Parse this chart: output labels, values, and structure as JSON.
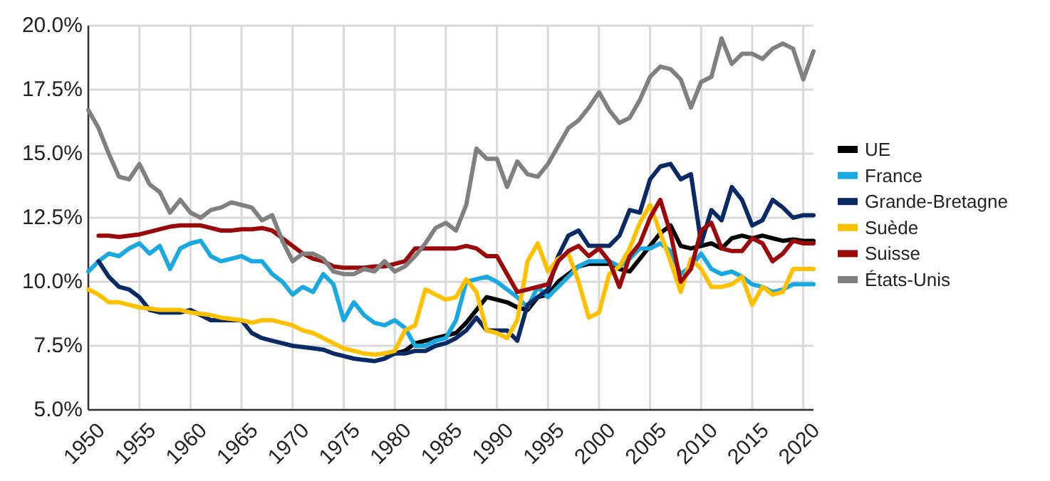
{
  "chart_data": {
    "type": "line",
    "xlim": [
      1950,
      2021
    ],
    "xticks": [
      1950,
      1955,
      1960,
      1965,
      1970,
      1975,
      1980,
      1985,
      1990,
      1995,
      2000,
      2005,
      2010,
      2015,
      2020
    ],
    "ylim": [
      5,
      20
    ],
    "yticks": [
      {
        "value": 5,
        "label": "5.0%"
      },
      {
        "value": 7.5,
        "label": "7.5%"
      },
      {
        "value": 10,
        "label": "10.0%"
      },
      {
        "value": 12.5,
        "label": "12.5%"
      },
      {
        "value": 15,
        "label": "15.0%"
      },
      {
        "value": 17.5,
        "label": "17.5%"
      },
      {
        "value": 20,
        "label": "20.0%"
      }
    ],
    "grid": true,
    "legend": "right",
    "line_style": "solid",
    "marker": "none",
    "series": [
      {
        "name": "UE",
        "color": "#000000",
        "x": [
          1979,
          1980,
          1981,
          1982,
          1983,
          1984,
          1985,
          1986,
          1987,
          1988,
          1989,
          1990,
          1991,
          1992,
          1993,
          1994,
          1995,
          1996,
          1997,
          1998,
          1999,
          2000,
          2001,
          2002,
          2003,
          2004,
          2005,
          2006,
          2007,
          2008,
          2009,
          2010,
          2011,
          2012,
          2013,
          2014,
          2015,
          2016,
          2017,
          2018,
          2019,
          2020,
          2021
        ],
        "values": [
          7.2,
          7.2,
          7.3,
          7.6,
          7.7,
          7.8,
          7.9,
          8.0,
          8.4,
          8.9,
          9.4,
          9.3,
          9.2,
          9.0,
          8.9,
          9.4,
          9.5,
          10.0,
          10.3,
          10.6,
          10.7,
          10.7,
          10.7,
          10.5,
          10.4,
          10.9,
          11.4,
          11.9,
          12.2,
          11.4,
          11.3,
          11.4,
          11.5,
          11.3,
          11.7,
          11.8,
          11.7,
          11.8,
          11.7,
          11.6,
          11.65,
          11.6,
          11.6
        ]
      },
      {
        "name": "France",
        "color": "#1aa8e0",
        "x": [
          1950,
          1951,
          1952,
          1953,
          1954,
          1955,
          1956,
          1957,
          1958,
          1959,
          1960,
          1961,
          1962,
          1963,
          1964,
          1965,
          1966,
          1967,
          1968,
          1969,
          1970,
          1971,
          1972,
          1973,
          1974,
          1975,
          1976,
          1977,
          1978,
          1979,
          1980,
          1981,
          1982,
          1983,
          1984,
          1985,
          1986,
          1987,
          1988,
          1989,
          1990,
          1991,
          1992,
          1993,
          1994,
          1995,
          1996,
          1997,
          1998,
          1999,
          2000,
          2001,
          2002,
          2003,
          2004,
          2005,
          2006,
          2007,
          2008,
          2009,
          2010,
          2011,
          2012,
          2013,
          2014,
          2015,
          2016,
          2017,
          2018,
          2019,
          2020,
          2021
        ],
        "values": [
          10.4,
          10.8,
          11.1,
          11.0,
          11.3,
          11.5,
          11.1,
          11.4,
          10.5,
          11.3,
          11.5,
          11.6,
          11.0,
          10.8,
          10.9,
          11.0,
          10.8,
          10.8,
          10.3,
          10.0,
          9.5,
          9.8,
          9.6,
          10.3,
          9.9,
          8.5,
          9.2,
          8.7,
          8.4,
          8.3,
          8.5,
          8.2,
          7.5,
          7.5,
          7.7,
          7.8,
          8.5,
          10.0,
          10.1,
          10.2,
          10.0,
          9.7,
          9.4,
          9.0,
          9.8,
          9.4,
          9.8,
          10.2,
          10.6,
          10.8,
          10.8,
          10.8,
          10.6,
          10.9,
          11.3,
          11.3,
          11.5,
          11.2,
          10.3,
          10.6,
          11.1,
          10.5,
          10.3,
          10.4,
          10.2,
          9.9,
          9.8,
          9.6,
          9.7,
          9.9,
          9.9,
          9.9
        ]
      },
      {
        "name": "Grande-Bretagne",
        "color": "#0a2a66",
        "x": [
          1951,
          1952,
          1953,
          1954,
          1955,
          1956,
          1957,
          1958,
          1959,
          1960,
          1961,
          1962,
          1963,
          1964,
          1965,
          1966,
          1967,
          1968,
          1969,
          1970,
          1971,
          1972,
          1973,
          1974,
          1975,
          1976,
          1977,
          1978,
          1979,
          1980,
          1981,
          1982,
          1983,
          1984,
          1985,
          1986,
          1987,
          1988,
          1989,
          1990,
          1991,
          1992,
          1993,
          1994,
          1995,
          1996,
          1997,
          1998,
          1999,
          2000,
          2001,
          2002,
          2003,
          2004,
          2005,
          2006,
          2007,
          2008,
          2009,
          2010,
          2011,
          2012,
          2013,
          2014,
          2015,
          2016,
          2017,
          2018,
          2019,
          2020,
          2021
        ],
        "values": [
          10.8,
          10.2,
          9.8,
          9.7,
          9.4,
          8.9,
          8.8,
          8.8,
          8.8,
          8.9,
          8.7,
          8.5,
          8.5,
          8.5,
          8.5,
          8.0,
          7.8,
          7.7,
          7.6,
          7.5,
          7.45,
          7.4,
          7.35,
          7.2,
          7.1,
          7.0,
          6.95,
          6.9,
          7.0,
          7.2,
          7.2,
          7.3,
          7.3,
          7.5,
          7.6,
          7.8,
          8.1,
          8.6,
          8.1,
          8.1,
          8.1,
          7.7,
          9.1,
          9.4,
          9.7,
          11.0,
          11.8,
          12.0,
          11.4,
          11.4,
          11.4,
          11.8,
          12.8,
          12.7,
          14.0,
          14.5,
          14.6,
          14.0,
          14.2,
          11.5,
          12.8,
          12.4,
          13.7,
          13.2,
          12.2,
          12.4,
          13.2,
          12.9,
          12.5,
          12.6,
          12.6
        ]
      },
      {
        "name": "Suède",
        "color": "#ffc000",
        "x": [
          1950,
          1951,
          1952,
          1953,
          1954,
          1955,
          1956,
          1957,
          1958,
          1959,
          1960,
          1961,
          1962,
          1963,
          1964,
          1965,
          1966,
          1967,
          1968,
          1969,
          1970,
          1971,
          1972,
          1973,
          1974,
          1975,
          1976,
          1977,
          1978,
          1979,
          1980,
          1981,
          1982,
          1983,
          1984,
          1985,
          1986,
          1987,
          1988,
          1989,
          1990,
          1991,
          1992,
          1993,
          1994,
          1995,
          1996,
          1997,
          1998,
          1999,
          2000,
          2001,
          2002,
          2003,
          2004,
          2005,
          2006,
          2007,
          2008,
          2009,
          2010,
          2011,
          2012,
          2013,
          2014,
          2015,
          2016,
          2017,
          2018,
          2019,
          2020,
          2021
        ],
        "values": [
          9.7,
          9.5,
          9.2,
          9.2,
          9.1,
          9.0,
          8.95,
          8.9,
          8.9,
          8.9,
          8.8,
          8.75,
          8.7,
          8.6,
          8.55,
          8.5,
          8.4,
          8.5,
          8.5,
          8.4,
          8.3,
          8.1,
          8.0,
          7.8,
          7.6,
          7.4,
          7.3,
          7.2,
          7.15,
          7.2,
          7.3,
          8.1,
          8.3,
          9.7,
          9.5,
          9.3,
          9.4,
          10.1,
          9.6,
          8.1,
          8.0,
          7.8,
          8.5,
          10.8,
          11.5,
          10.4,
          10.9,
          11.1,
          10.0,
          8.6,
          8.8,
          10.3,
          10.6,
          11.3,
          12.3,
          13.0,
          11.9,
          10.8,
          9.6,
          10.9,
          10.5,
          9.8,
          9.8,
          9.9,
          10.2,
          9.1,
          9.8,
          9.5,
          9.6,
          10.5,
          10.5,
          10.5
        ]
      },
      {
        "name": "Suisse",
        "color": "#9b0a0a",
        "x": [
          1951,
          1952,
          1953,
          1954,
          1955,
          1956,
          1957,
          1958,
          1959,
          1960,
          1961,
          1962,
          1963,
          1964,
          1965,
          1966,
          1967,
          1968,
          1969,
          1970,
          1971,
          1972,
          1973,
          1974,
          1975,
          1976,
          1977,
          1978,
          1979,
          1980,
          1981,
          1982,
          1983,
          1984,
          1985,
          1986,
          1987,
          1988,
          1989,
          1990,
          1991,
          1992,
          1993,
          1994,
          1995,
          1996,
          1997,
          1998,
          1999,
          2000,
          2001,
          2002,
          2003,
          2004,
          2005,
          2006,
          2007,
          2008,
          2009,
          2010,
          2011,
          2012,
          2013,
          2014,
          2015,
          2016,
          2017,
          2018,
          2019,
          2020,
          2021
        ],
        "values": [
          11.8,
          11.8,
          11.75,
          11.8,
          11.85,
          11.95,
          12.05,
          12.15,
          12.2,
          12.2,
          12.2,
          12.1,
          12.0,
          12.0,
          12.05,
          12.05,
          12.1,
          12.0,
          11.7,
          11.4,
          11.1,
          10.9,
          10.8,
          10.6,
          10.55,
          10.55,
          10.55,
          10.6,
          10.6,
          10.7,
          10.8,
          11.3,
          11.3,
          11.3,
          11.3,
          11.3,
          11.4,
          11.3,
          11.0,
          11.0,
          10.3,
          9.6,
          9.7,
          9.8,
          9.9,
          10.8,
          11.2,
          11.4,
          11.0,
          11.3,
          10.8,
          9.8,
          11.0,
          11.5,
          12.5,
          13.2,
          11.9,
          10.0,
          10.5,
          12.0,
          12.3,
          11.3,
          11.2,
          11.2,
          11.7,
          11.5,
          10.8,
          11.1,
          11.6,
          11.5,
          11.5
        ]
      },
      {
        "name": "États-Unis",
        "color": "#808080",
        "x": [
          1950,
          1951,
          1952,
          1953,
          1954,
          1955,
          1956,
          1957,
          1958,
          1959,
          1960,
          1961,
          1962,
          1963,
          1964,
          1965,
          1966,
          1967,
          1968,
          1969,
          1970,
          1971,
          1972,
          1973,
          1974,
          1975,
          1976,
          1977,
          1978,
          1979,
          1980,
          1981,
          1982,
          1983,
          1984,
          1985,
          1986,
          1987,
          1988,
          1989,
          1990,
          1991,
          1992,
          1993,
          1994,
          1995,
          1996,
          1997,
          1998,
          1999,
          2000,
          2001,
          2002,
          2003,
          2004,
          2005,
          2006,
          2007,
          2008,
          2009,
          2010,
          2011,
          2012,
          2013,
          2014,
          2015,
          2016,
          2017,
          2018,
          2019,
          2020,
          2021
        ],
        "values": [
          16.7,
          16.0,
          15.0,
          14.1,
          14.0,
          14.6,
          13.8,
          13.5,
          12.7,
          13.2,
          12.7,
          12.5,
          12.8,
          12.9,
          13.1,
          13.0,
          12.9,
          12.4,
          12.6,
          11.6,
          10.8,
          11.1,
          11.1,
          10.9,
          10.4,
          10.3,
          10.3,
          10.5,
          10.4,
          10.8,
          10.4,
          10.6,
          11.0,
          11.5,
          12.1,
          12.3,
          12.0,
          13.0,
          15.2,
          14.8,
          14.8,
          13.7,
          14.7,
          14.2,
          14.1,
          14.6,
          15.3,
          16.0,
          16.3,
          16.8,
          17.4,
          16.7,
          16.2,
          16.4,
          17.1,
          18.0,
          18.4,
          18.3,
          17.9,
          16.8,
          17.8,
          18.0,
          19.5,
          18.5,
          18.9,
          18.9,
          18.7,
          19.1,
          19.3,
          19.1,
          17.9,
          19.0
        ]
      }
    ]
  }
}
